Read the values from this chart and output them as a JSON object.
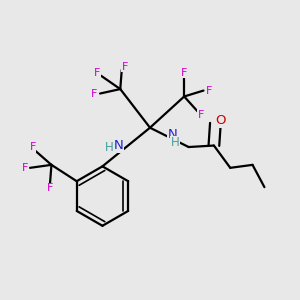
{
  "bg_color": "#e8e8e8",
  "atom_colors": {
    "C": "#000000",
    "H": "#40a0a0",
    "N": "#2222cc",
    "O": "#cc0000",
    "F": "#cc00cc"
  },
  "bond_color": "#000000",
  "bond_width": 1.6,
  "fig_bg": "#e8e8e8"
}
